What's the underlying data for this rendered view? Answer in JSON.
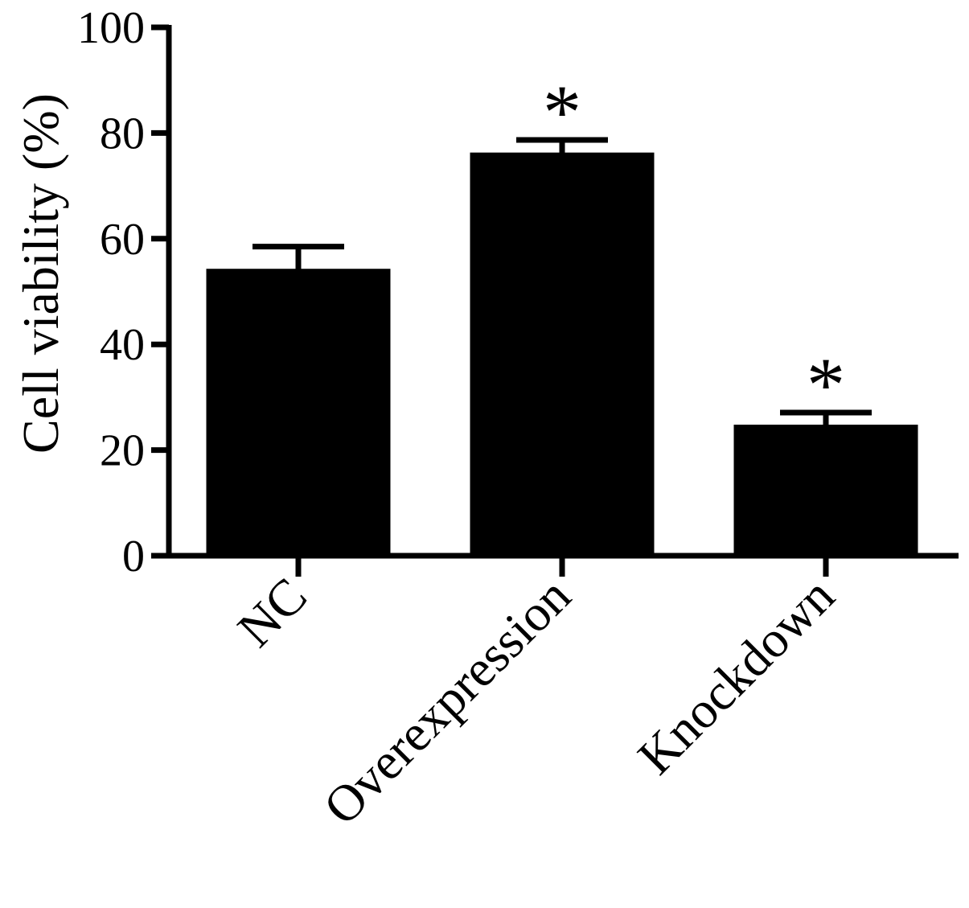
{
  "chart_data": {
    "type": "bar",
    "ylabel": "Cell viability (%)",
    "ylim": [
      0,
      100
    ],
    "yticks": [
      0,
      20,
      40,
      60,
      80,
      100
    ],
    "categories": [
      "NC",
      "Overexpression",
      "Knockdown"
    ],
    "values": [
      54,
      76,
      24.5
    ],
    "errors": [
      4.5,
      2.7,
      2.6
    ],
    "significance": [
      "",
      "*",
      "*"
    ],
    "grid": false,
    "bar_color": "#000000"
  }
}
